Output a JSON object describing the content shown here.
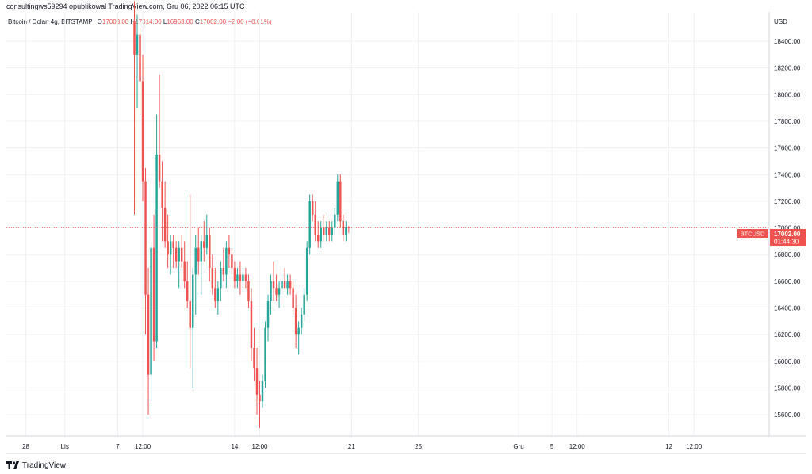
{
  "header": {
    "publish": "consultingws59294 opublikował TradingView.com, Gru 06, 2022 06:15 UTC",
    "symbol": "Bitcoin / Dolar, 4g, BITSTAMP",
    "open_label": "O",
    "open_value": "17003.00",
    "high_label": "H",
    "high_value": "17014.00",
    "low_label": "L",
    "low_value": "16963.00",
    "close_label": "C",
    "close_value": "17002.00",
    "change": "−2.00 (−0.01%)"
  },
  "price_tag": {
    "symbol": "BTCUSD",
    "price": "17002.00",
    "countdown": "01:44:30"
  },
  "footer": {
    "brand": "TradingView"
  },
  "colors": {
    "up": "#26a69a",
    "down": "#ef5350",
    "grid": "#eef0f3",
    "axis_line": "#d1d4dc"
  },
  "chart_data": {
    "type": "candlestick",
    "y_axis_label": "USD",
    "y_ticks": [
      15600,
      15800,
      16000,
      16200,
      16400,
      16600,
      16800,
      17000,
      17200,
      17400,
      17600,
      17800,
      18000,
      18200,
      18400
    ],
    "y_tick_labels": [
      "15600.00",
      "15800.00",
      "16000.00",
      "16200.00",
      "16400.00",
      "16600.00",
      "16800.00",
      "17000.00",
      "17200.00",
      "17400.00",
      "17600.00",
      "17800.00",
      "18000.00",
      "18200.00",
      "18400.00"
    ],
    "ylim": [
      15440,
      18620
    ],
    "x_ticks": [
      {
        "label": "28",
        "bar": -39
      },
      {
        "label": "Lis",
        "bar": -25
      },
      {
        "label": "7",
        "bar": -6
      },
      {
        "label": "12:00",
        "bar": 3
      },
      {
        "label": "14",
        "bar": 36
      },
      {
        "label": "12:00",
        "bar": 45
      },
      {
        "label": "21",
        "bar": 78
      },
      {
        "label": "25",
        "bar": 102
      },
      {
        "label": "Gru",
        "bar": 138
      },
      {
        "label": "5",
        "bar": 150
      },
      {
        "label": "12:00",
        "bar": 159
      },
      {
        "label": "12",
        "bar": 192
      },
      {
        "label": "12:00",
        "bar": 201
      }
    ],
    "xlim": [
      -46,
      228
    ],
    "last_price": 17002,
    "grid": true,
    "candles": [
      [
        18550,
        18700,
        17100,
        18300
      ],
      [
        18300,
        18600,
        17900,
        18450
      ],
      [
        18450,
        18500,
        17850,
        18100
      ],
      [
        18100,
        18300,
        17200,
        17350
      ],
      [
        17350,
        17450,
        16200,
        16500
      ],
      [
        16500,
        16700,
        15600,
        15900
      ],
      [
        15900,
        16900,
        15700,
        16850
      ],
      [
        16850,
        17100,
        16000,
        16150
      ],
      [
        16150,
        17850,
        16100,
        17550
      ],
      [
        17550,
        18150,
        17300,
        17350
      ],
      [
        17350,
        17500,
        16900,
        17150
      ],
      [
        17150,
        17350,
        16850,
        16900
      ],
      [
        16900,
        17100,
        16700,
        16800
      ],
      [
        16800,
        16950,
        16650,
        16900
      ],
      [
        16900,
        16950,
        16700,
        16850
      ],
      [
        16850,
        16900,
        16700,
        16750
      ],
      [
        16750,
        16900,
        16550,
        16850
      ],
      [
        16850,
        16950,
        16700,
        16750
      ],
      [
        16750,
        16900,
        16550,
        16600
      ],
      [
        16600,
        16750,
        16400,
        16450
      ],
      [
        16450,
        17250,
        15950,
        16250
      ],
      [
        16250,
        16700,
        15800,
        16650
      ],
      [
        16650,
        16950,
        16350,
        16850
      ],
      [
        16850,
        17000,
        16650,
        16750
      ],
      [
        16750,
        16950,
        16500,
        16900
      ],
      [
        16900,
        17050,
        16750,
        16850
      ],
      [
        16850,
        17100,
        16800,
        16950
      ],
      [
        16950,
        17000,
        16600,
        16700
      ],
      [
        16700,
        16800,
        16500,
        16550
      ],
      [
        16550,
        16700,
        16400,
        16450
      ],
      [
        16450,
        16600,
        16350,
        16550
      ],
      [
        16550,
        16750,
        16450,
        16700
      ],
      [
        16700,
        16850,
        16600,
        16650
      ],
      [
        16650,
        16900,
        16550,
        16850
      ],
      [
        16850,
        16950,
        16700,
        16800
      ],
      [
        16800,
        16850,
        16650,
        16700
      ],
      [
        16700,
        16750,
        16550,
        16600
      ],
      [
        16600,
        16700,
        16550,
        16650
      ],
      [
        16650,
        16750,
        16500,
        16600
      ],
      [
        16600,
        16700,
        16550,
        16650
      ],
      [
        16650,
        16700,
        16550,
        16600
      ],
      [
        16600,
        16650,
        16400,
        16450
      ],
      [
        16450,
        16550,
        16000,
        16100
      ],
      [
        16100,
        16250,
        15850,
        15950
      ],
      [
        15950,
        16100,
        15600,
        15750
      ],
      [
        15750,
        15850,
        15500,
        15700
      ],
      [
        15700,
        15900,
        15650,
        15850
      ],
      [
        15850,
        16300,
        15800,
        16250
      ],
      [
        16250,
        16500,
        16150,
        16450
      ],
      [
        16450,
        16650,
        16350,
        16600
      ],
      [
        16600,
        16750,
        16450,
        16550
      ],
      [
        16550,
        16650,
        16450,
        16500
      ],
      [
        16500,
        16600,
        16400,
        16550
      ],
      [
        16550,
        16650,
        16500,
        16600
      ],
      [
        16600,
        16700,
        16550,
        16550
      ],
      [
        16550,
        16650,
        16500,
        16600
      ],
      [
        16600,
        16650,
        16500,
        16550
      ],
      [
        16550,
        16600,
        16350,
        16400
      ],
      [
        16400,
        16500,
        16100,
        16200
      ],
      [
        16200,
        16300,
        16050,
        16250
      ],
      [
        16250,
        16400,
        16200,
        16350
      ],
      [
        16350,
        16550,
        16300,
        16500
      ],
      [
        16500,
        16900,
        16450,
        16850
      ],
      [
        16850,
        17250,
        16800,
        17200
      ],
      [
        17200,
        17250,
        17050,
        17100
      ],
      [
        17100,
        17200,
        16900,
        16950
      ],
      [
        16950,
        17050,
        16850,
        16900
      ],
      [
        16900,
        17050,
        16850,
        17000
      ],
      [
        17000,
        17100,
        16900,
        16950
      ],
      [
        16950,
        17050,
        16900,
        17000
      ],
      [
        17000,
        17050,
        16900,
        16950
      ],
      [
        16950,
        17050,
        16900,
        17000
      ],
      [
        17000,
        17150,
        16950,
        17100
      ],
      [
        17100,
        17400,
        17050,
        17350
      ],
      [
        17350,
        17400,
        17000,
        17050
      ],
      [
        17050,
        17100,
        16900,
        16950
      ],
      [
        16950,
        17050,
        16900,
        17003
      ],
      [
        17003,
        17014,
        16963,
        17002
      ]
    ]
  }
}
